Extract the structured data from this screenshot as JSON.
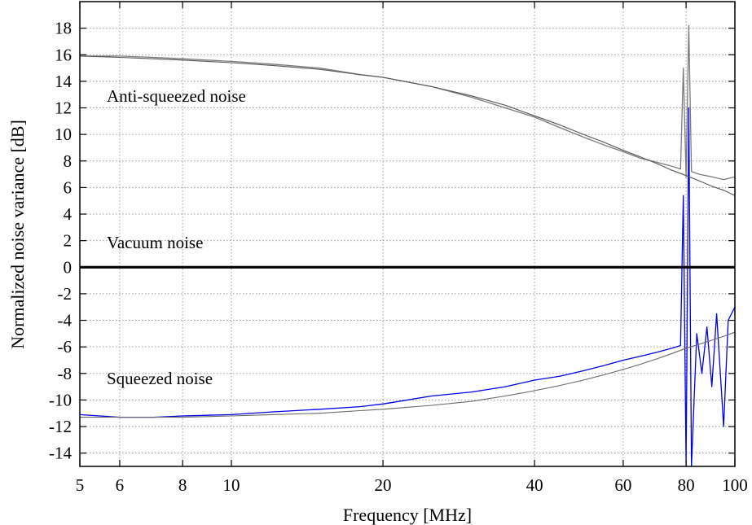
{
  "chart_data": {
    "type": "line",
    "xlabel": "Frequency [MHz]",
    "ylabel": "Normalized noise variance [dB]",
    "x_scale": "log",
    "xlim": [
      5,
      100
    ],
    "ylim": [
      -15,
      20
    ],
    "x_ticks": [
      5,
      6,
      8,
      10,
      20,
      40,
      60,
      80,
      100
    ],
    "y_ticks": [
      -14,
      -12,
      -10,
      -8,
      -6,
      -4,
      -2,
      0,
      2,
      4,
      6,
      8,
      10,
      12,
      14,
      16,
      18
    ],
    "grid": true,
    "colors": {
      "anti_squeezed": "#7a7a7a",
      "anti_squeezed_fit": "#555555",
      "squeezed": "#0000e6",
      "squeezed_fit": "#666666",
      "vacuum": "#000000"
    },
    "annotations": [
      {
        "text": "Anti-squeezed noise",
        "color": "#7a7a7a"
      },
      {
        "text": "Vacuum noise",
        "color": "#000000"
      },
      {
        "text": "Squeezed noise",
        "color": "#0000e6"
      }
    ],
    "series": [
      {
        "role": "anti-squeezed-measured",
        "x": [
          5,
          6,
          7,
          8,
          10,
          12,
          15,
          18,
          20,
          25,
          30,
          35,
          40,
          45,
          50,
          55,
          60,
          65,
          70,
          75,
          78,
          79,
          80,
          81,
          82,
          85,
          90,
          95,
          100
        ],
        "y": [
          15.9,
          15.9,
          15.8,
          15.7,
          15.5,
          15.3,
          15.0,
          14.5,
          14.3,
          13.6,
          12.8,
          12.0,
          11.3,
          10.5,
          9.8,
          9.2,
          8.7,
          8.2,
          7.9,
          7.6,
          7.4,
          15.0,
          6.8,
          18.2,
          7.2,
          7.0,
          6.8,
          6.6,
          6.8
        ]
      },
      {
        "role": "anti-squeezed-fit",
        "x": [
          5,
          6,
          7,
          8,
          10,
          12,
          15,
          18,
          20,
          25,
          30,
          35,
          40,
          45,
          50,
          55,
          60,
          65,
          70,
          75,
          80,
          85,
          90,
          95,
          100
        ],
        "y": [
          15.9,
          15.8,
          15.7,
          15.6,
          15.4,
          15.2,
          14.9,
          14.5,
          14.3,
          13.6,
          12.9,
          12.2,
          11.4,
          10.7,
          10.0,
          9.4,
          8.8,
          8.3,
          7.8,
          7.3,
          6.9,
          6.5,
          6.1,
          5.8,
          5.4
        ]
      },
      {
        "role": "squeezed-measured",
        "x": [
          5,
          6,
          7,
          8,
          10,
          12,
          15,
          18,
          20,
          25,
          30,
          35,
          40,
          45,
          50,
          55,
          60,
          65,
          70,
          75,
          78,
          79,
          80,
          81,
          82,
          84,
          86,
          88,
          90,
          92,
          95,
          97,
          100
        ],
        "y": [
          -11.1,
          -11.3,
          -11.3,
          -11.2,
          -11.1,
          -10.9,
          -10.7,
          -10.5,
          -10.3,
          -9.7,
          -9.4,
          -9.0,
          -8.5,
          -8.2,
          -7.8,
          -7.4,
          -7.0,
          -6.7,
          -6.4,
          -6.1,
          -5.9,
          5.4,
          -15.0,
          12.0,
          -15.0,
          -5.0,
          -8.0,
          -4.5,
          -9.0,
          -3.5,
          -12.0,
          -4.0,
          -3.0
        ]
      },
      {
        "role": "squeezed-fit",
        "x": [
          5,
          6,
          7,
          8,
          10,
          12,
          15,
          18,
          20,
          25,
          30,
          35,
          40,
          45,
          50,
          55,
          60,
          65,
          70,
          75,
          80,
          85,
          90,
          95,
          100
        ],
        "y": [
          -11.3,
          -11.3,
          -11.3,
          -11.3,
          -11.2,
          -11.1,
          -11.0,
          -10.8,
          -10.7,
          -10.4,
          -10.1,
          -9.7,
          -9.3,
          -8.9,
          -8.5,
          -8.1,
          -7.7,
          -7.3,
          -6.9,
          -6.5,
          -6.1,
          -5.8,
          -5.5,
          -5.2,
          -4.9
        ]
      },
      {
        "role": "vacuum-noise",
        "x": [
          5,
          100
        ],
        "y": [
          0,
          0
        ]
      }
    ]
  }
}
